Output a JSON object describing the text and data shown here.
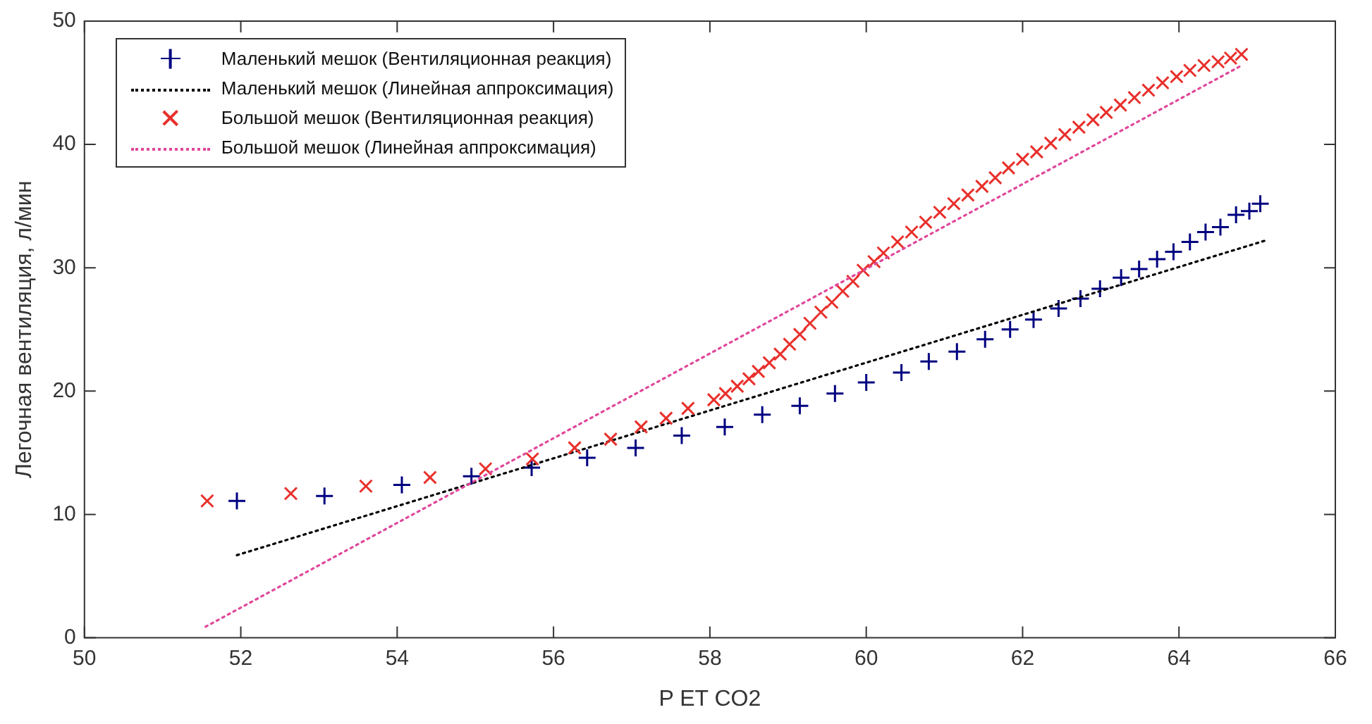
{
  "chart_data": {
    "type": "scatter",
    "xlabel": "P ET CO2",
    "ylabel": "Легочная вентиляция, л/мин",
    "xlim": [
      50,
      66
    ],
    "xticks": [
      50,
      52,
      54,
      56,
      58,
      60,
      62,
      64,
      66
    ],
    "ylim": [
      0,
      50
    ],
    "yticks": [
      0,
      10,
      20,
      30,
      40,
      50
    ],
    "grid": false,
    "legend": "top left",
    "series": [
      {
        "name": "Маленький мешок (Вентиляционная реакция)",
        "marker": "plus",
        "color": "#000080",
        "x": [
          51.95,
          53.07,
          54.06,
          54.95,
          55.72,
          56.43,
          57.05,
          57.64,
          58.19,
          58.67,
          59.15,
          59.6,
          60.0,
          60.45,
          60.8,
          61.16,
          61.52,
          61.84,
          62.14,
          62.46,
          62.74,
          62.99,
          63.26,
          63.49,
          63.72,
          63.93,
          64.14,
          64.34,
          64.53,
          64.73,
          64.9,
          65.04
        ],
        "values": [
          11.1,
          11.5,
          12.4,
          13.1,
          13.8,
          14.6,
          15.4,
          16.4,
          17.1,
          18.1,
          18.8,
          19.8,
          20.7,
          21.5,
          22.4,
          23.2,
          24.2,
          25.0,
          25.8,
          26.7,
          27.5,
          28.3,
          29.2,
          29.9,
          30.7,
          31.3,
          32.1,
          32.9,
          33.3,
          34.3,
          34.6,
          35.2
        ]
      },
      {
        "name": "Маленький мешок (Линейная аппроксимация)",
        "type": "line",
        "marker": "none",
        "line_style": "dotted",
        "color": "#000000",
        "x": [
          51.95,
          65.1
        ],
        "values": [
          6.7,
          32.2
        ]
      },
      {
        "name": "Большой мешок (Вентиляционная реакция)",
        "marker": "cross",
        "color": "#e8302c",
        "x": [
          51.57,
          52.64,
          53.6,
          54.42,
          55.13,
          55.73,
          56.27,
          56.73,
          57.12,
          57.44,
          57.72,
          58.05,
          58.2,
          58.35,
          58.5,
          58.62,
          58.76,
          58.9,
          59.02,
          59.15,
          59.28,
          59.42,
          59.56,
          59.7,
          59.83,
          59.96,
          60.1,
          60.22,
          60.4,
          60.58,
          60.76,
          60.94,
          61.12,
          61.3,
          61.48,
          61.65,
          61.82,
          62.0,
          62.18,
          62.36,
          62.54,
          62.72,
          62.9,
          63.07,
          63.25,
          63.43,
          63.61,
          63.79,
          63.97,
          64.14,
          64.32,
          64.5,
          64.66,
          64.8
        ],
        "values": [
          11.1,
          11.7,
          12.3,
          13.0,
          13.7,
          14.5,
          15.4,
          16.1,
          17.1,
          17.8,
          18.6,
          19.3,
          19.8,
          20.4,
          21.0,
          21.6,
          22.3,
          23.0,
          23.8,
          24.6,
          25.5,
          26.4,
          27.2,
          28.1,
          28.9,
          29.8,
          30.5,
          31.2,
          32.1,
          32.9,
          33.7,
          34.5,
          35.2,
          35.9,
          36.6,
          37.3,
          38.1,
          38.8,
          39.4,
          40.1,
          40.8,
          41.4,
          42.0,
          42.6,
          43.2,
          43.8,
          44.4,
          45.0,
          45.5,
          46.0,
          46.4,
          46.7,
          47.0,
          47.3
        ]
      },
      {
        "name": "Большой мешок (Линейная аппроксимация)",
        "type": "line",
        "marker": "none",
        "line_style": "dotted",
        "color": "#e0479a",
        "x": [
          51.55,
          64.8
        ],
        "values": [
          0.9,
          46.4
        ]
      }
    ]
  }
}
